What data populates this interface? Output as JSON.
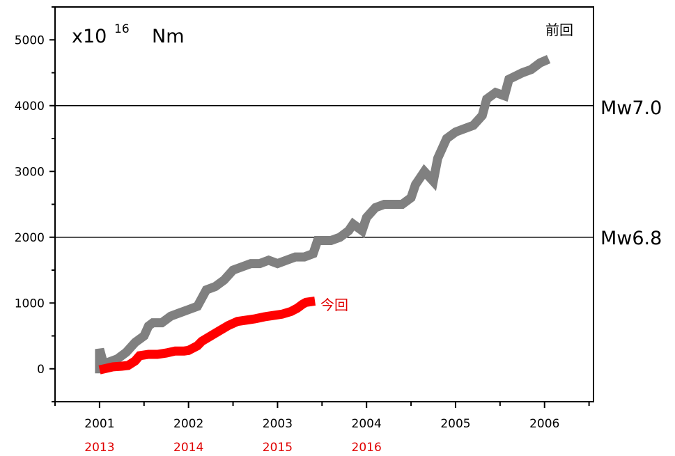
{
  "chart_data": {
    "type": "line",
    "unit": {
      "base": "x10",
      "exponent": "16",
      "unit": "Nm"
    },
    "x_primary": {
      "ticks": [
        2001,
        2002,
        2003,
        2004,
        2005,
        2006
      ],
      "labels": [
        "2001",
        "2002",
        "2003",
        "2004",
        "2005",
        "2006"
      ],
      "lim": [
        2000.5,
        2006.55
      ]
    },
    "x_secondary": {
      "ticks": [
        2001,
        2002,
        2003,
        2004
      ],
      "labels": [
        "2013",
        "2014",
        "2015",
        "2016"
      ],
      "color": "#e00000"
    },
    "y": {
      "ticks": [
        0,
        1000,
        2000,
        3000,
        4000,
        5000
      ],
      "labels": [
        "0",
        "1000",
        "2000",
        "3000",
        "4000",
        "5000"
      ],
      "lim": [
        -500,
        5500
      ]
    },
    "reference_lines": [
      {
        "value": 4000,
        "label": "Mw7.0"
      },
      {
        "value": 2000,
        "label": "Mw6.8"
      }
    ],
    "series": [
      {
        "name": "前回",
        "color": "#808080",
        "points": [
          [
            2001.0,
            0
          ],
          [
            2001.0,
            300
          ],
          [
            2001.05,
            50
          ],
          [
            2001.1,
            100
          ],
          [
            2001.2,
            150
          ],
          [
            2001.3,
            250
          ],
          [
            2001.4,
            400
          ],
          [
            2001.5,
            500
          ],
          [
            2001.55,
            650
          ],
          [
            2001.6,
            700
          ],
          [
            2001.7,
            700
          ],
          [
            2001.8,
            800
          ],
          [
            2001.9,
            850
          ],
          [
            2002.0,
            900
          ],
          [
            2002.1,
            950
          ],
          [
            2002.2,
            1200
          ],
          [
            2002.3,
            1250
          ],
          [
            2002.4,
            1350
          ],
          [
            2002.5,
            1500
          ],
          [
            2002.6,
            1550
          ],
          [
            2002.7,
            1600
          ],
          [
            2002.8,
            1600
          ],
          [
            2002.9,
            1650
          ],
          [
            2003.0,
            1600
          ],
          [
            2003.1,
            1650
          ],
          [
            2003.2,
            1700
          ],
          [
            2003.3,
            1700
          ],
          [
            2003.4,
            1750
          ],
          [
            2003.45,
            1950
          ],
          [
            2003.6,
            1950
          ],
          [
            2003.7,
            2000
          ],
          [
            2003.8,
            2100
          ],
          [
            2003.85,
            2200
          ],
          [
            2003.95,
            2100
          ],
          [
            2004.0,
            2300
          ],
          [
            2004.1,
            2450
          ],
          [
            2004.2,
            2500
          ],
          [
            2004.3,
            2500
          ],
          [
            2004.4,
            2500
          ],
          [
            2004.5,
            2600
          ],
          [
            2004.55,
            2800
          ],
          [
            2004.6,
            2900
          ],
          [
            2004.65,
            3000
          ],
          [
            2004.75,
            2850
          ],
          [
            2004.8,
            3200
          ],
          [
            2004.9,
            3500
          ],
          [
            2005.0,
            3600
          ],
          [
            2005.1,
            3650
          ],
          [
            2005.2,
            3700
          ],
          [
            2005.3,
            3850
          ],
          [
            2005.35,
            4100
          ],
          [
            2005.45,
            4200
          ],
          [
            2005.55,
            4150
          ],
          [
            2005.6,
            4400
          ],
          [
            2005.75,
            4500
          ],
          [
            2005.85,
            4550
          ],
          [
            2005.95,
            4650
          ],
          [
            2006.0,
            4680
          ]
        ]
      },
      {
        "name": "今回",
        "color": "#ff0000",
        "points": [
          [
            2001.05,
            0
          ],
          [
            2001.15,
            30
          ],
          [
            2001.25,
            40
          ],
          [
            2001.32,
            50
          ],
          [
            2001.4,
            120
          ],
          [
            2001.45,
            200
          ],
          [
            2001.55,
            220
          ],
          [
            2001.65,
            220
          ],
          [
            2001.75,
            240
          ],
          [
            2001.85,
            270
          ],
          [
            2001.95,
            270
          ],
          [
            2002.0,
            280
          ],
          [
            2002.1,
            350
          ],
          [
            2002.15,
            420
          ],
          [
            2002.25,
            500
          ],
          [
            2002.35,
            580
          ],
          [
            2002.45,
            660
          ],
          [
            2002.55,
            720
          ],
          [
            2002.65,
            740
          ],
          [
            2002.75,
            760
          ],
          [
            2002.85,
            790
          ],
          [
            2002.95,
            810
          ],
          [
            2003.05,
            830
          ],
          [
            2003.15,
            870
          ],
          [
            2003.22,
            920
          ],
          [
            2003.28,
            980
          ],
          [
            2003.32,
            1010
          ],
          [
            2003.37,
            1020
          ]
        ]
      }
    ]
  }
}
